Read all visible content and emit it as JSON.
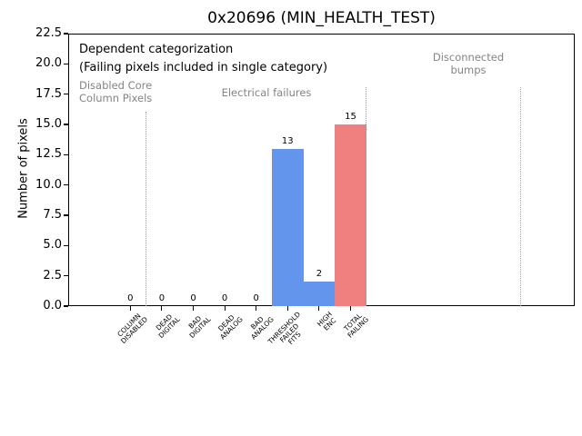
{
  "chart_data": {
    "type": "bar",
    "title": "0x20696 (MIN_HEALTH_TEST)",
    "ylabel": "Number of pixels",
    "ylim": [
      0,
      22.5
    ],
    "yticks": [
      "0.0",
      "2.5",
      "5.0",
      "7.5",
      "10.0",
      "12.5",
      "15.0",
      "17.5",
      "20.0",
      "22.5"
    ],
    "grid": false,
    "legend": "none",
    "categories": [
      [
        "COLUMN",
        "DISABLED"
      ],
      [
        "DEAD",
        "DIGITAL"
      ],
      [
        "BAD",
        "DIGITAL"
      ],
      [
        "DEAD",
        "ANALOG"
      ],
      [
        "BAD",
        "ANALOG"
      ],
      [
        "THRESHOLD",
        "FAILED",
        "FITS"
      ],
      [
        "HIGH",
        "ENC"
      ],
      [
        "TOTAL",
        "FAILING"
      ]
    ],
    "values": [
      0,
      0,
      0,
      0,
      0,
      13,
      2,
      15
    ],
    "value_labels": [
      "0",
      "0",
      "0",
      "0",
      "0",
      "13",
      "2",
      "15"
    ],
    "bar_colors": [
      "#6495ed",
      "#6495ed",
      "#6495ed",
      "#6495ed",
      "#6495ed",
      "#6495ed",
      "#6495ed",
      "#f08080"
    ],
    "xlim_category_units": [
      -1.97,
      14.13
    ],
    "separators_x_category_units": [
      0.5,
      7.5,
      12.43
    ],
    "annotations": {
      "header_line1": "Dependent categorization",
      "header_line2": "(Failing pixels included in single category)",
      "regions": [
        {
          "name": "disabled-core-column-pixels",
          "lines": [
            "Disabled Core",
            "Column Pixels"
          ]
        },
        {
          "name": "electrical-failures",
          "lines": [
            "Electrical failures"
          ]
        },
        {
          "name": "disconnected-bumps",
          "lines": [
            "Disconnected",
            "bumps"
          ]
        }
      ]
    },
    "colors": {
      "bar_default": "#6495ed",
      "bar_total_failing": "#f08080",
      "region_text": "#848484",
      "separator_line": "#999999",
      "axes": "#000000",
      "background": "#ffffff"
    }
  }
}
